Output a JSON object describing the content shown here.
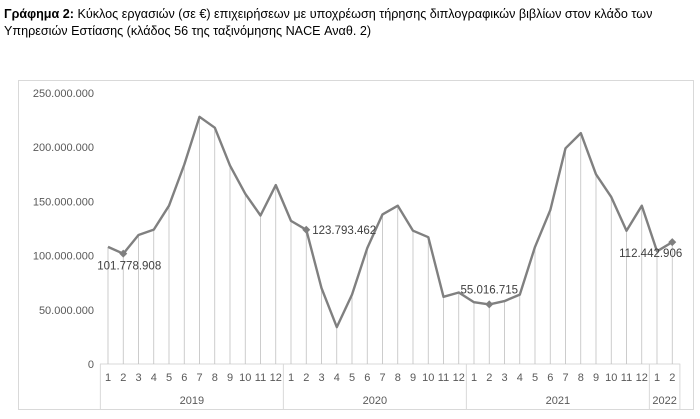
{
  "caption": {
    "bold": "Γράφημα 2:",
    "text": " Κύκλος εργασιών (σε €) επιχειρήσεων με υποχρέωση τήρησης διπλογραφικών βιβλίων στον κλάδο των Υπηρεσιών Εστίασης (κλάδος 56 της ταξινόμησης NACE Αναθ. 2)"
  },
  "chart_data": {
    "type": "line",
    "title": "",
    "xlabel": "",
    "ylabel": "",
    "ylim": [
      0,
      250000000
    ],
    "y_ticks": [
      0,
      50000000,
      100000000,
      150000000,
      200000000,
      250000000
    ],
    "y_tick_labels": [
      "0",
      "50.000.000",
      "100.000.000",
      "150.000.000",
      "200.000.000",
      "250.000.000"
    ],
    "month_labels": [
      "1",
      "2",
      "3",
      "4",
      "5",
      "6",
      "7",
      "8",
      "9",
      "10",
      "11",
      "12",
      "1",
      "2",
      "3",
      "4",
      "5",
      "6",
      "7",
      "8",
      "9",
      "10",
      "11",
      "12",
      "1",
      "2",
      "3",
      "4",
      "5",
      "6",
      "7",
      "8",
      "9",
      "10",
      "11",
      "12",
      "1",
      "2"
    ],
    "years": [
      {
        "label": "2019",
        "count": 12
      },
      {
        "label": "2020",
        "count": 12
      },
      {
        "label": "2021",
        "count": 12
      },
      {
        "label": "2022",
        "count": 2
      }
    ],
    "series": [
      {
        "color": "#808080",
        "values": [
          108000000,
          101778908,
          119000000,
          124000000,
          146000000,
          184000000,
          228000000,
          218000000,
          183000000,
          157000000,
          137000000,
          165000000,
          132000000,
          123793462,
          70000000,
          34000000,
          64000000,
          107000000,
          138000000,
          146000000,
          123000000,
          117000000,
          62000000,
          66000000,
          57000000,
          55016715,
          58000000,
          64000000,
          108000000,
          142000000,
          199000000,
          213000000,
          175000000,
          154000000,
          123000000,
          146000000,
          104000000,
          112442906
        ]
      }
    ],
    "data_labels": [
      {
        "index": 1,
        "text": "101.778.908",
        "pos": "below"
      },
      {
        "index": 13,
        "text": "123.793.462",
        "pos": "right"
      },
      {
        "index": 25,
        "text": "55.016.715",
        "pos": "above"
      },
      {
        "index": 37,
        "text": "112.442.906",
        "pos": "below-left"
      }
    ],
    "marker_indices": [
      1,
      13,
      25,
      37
    ],
    "grid": true,
    "grid_style": "vertical drop lines",
    "legend": "none"
  }
}
